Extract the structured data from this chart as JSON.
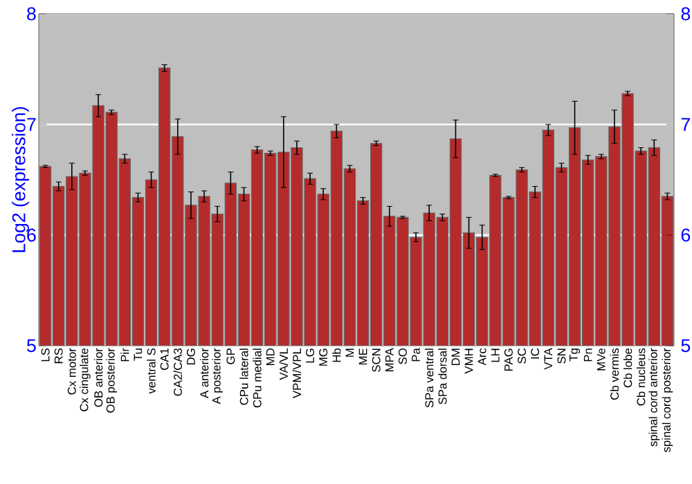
{
  "chart_data": {
    "type": "bar",
    "ylabel": "Log2 (expression)",
    "categories": [
      "LS",
      "RS",
      "Cx motor",
      "Cx cingulate",
      "OB anterior",
      "OB posterior",
      "Pir",
      "Tu",
      "ventral S",
      "CA1",
      "CA2/CA3",
      "DG",
      "A anterior",
      "A posterior",
      "GP",
      "CPu lateral",
      "CPu medial",
      "MD",
      "VA/VL",
      "VPM/VPL",
      "LG",
      "MG",
      "Hb",
      "M",
      "ME",
      "SCN",
      "MPA",
      "SO",
      "Pa",
      "SPa ventral",
      "SPa dorsal",
      "DM",
      "VMH",
      "Arc",
      "LH",
      "PAG",
      "SC",
      "IC",
      "VTA",
      "SN",
      "Tg",
      "Pn",
      "MVe",
      "Cb vermis",
      "Cb lobe",
      "Cb nucleus",
      "spinal cord anterior",
      "spinal cord posterior"
    ],
    "values": [
      6.62,
      6.44,
      6.53,
      6.56,
      7.17,
      7.11,
      6.69,
      6.34,
      6.5,
      7.51,
      6.89,
      6.27,
      6.35,
      6.19,
      6.47,
      6.37,
      6.77,
      6.74,
      6.75,
      6.79,
      6.51,
      6.37,
      6.94,
      6.6,
      6.31,
      6.83,
      6.17,
      6.16,
      5.98,
      6.2,
      6.16,
      6.87,
      6.02,
      5.98,
      6.54,
      6.34,
      6.59,
      6.39,
      6.95,
      6.61,
      6.97,
      6.68,
      6.71,
      6.98,
      7.28,
      6.76,
      6.79,
      6.35
    ],
    "errors": [
      0.01,
      0.04,
      0.12,
      0.02,
      0.1,
      0.02,
      0.04,
      0.04,
      0.07,
      0.03,
      0.16,
      0.12,
      0.05,
      0.07,
      0.1,
      0.06,
      0.03,
      0.02,
      0.32,
      0.06,
      0.05,
      0.05,
      0.06,
      0.03,
      0.03,
      0.02,
      0.09,
      0.01,
      0.04,
      0.07,
      0.03,
      0.17,
      0.14,
      0.11,
      0.01,
      0.01,
      0.02,
      0.05,
      0.05,
      0.04,
      0.24,
      0.04,
      0.02,
      0.15,
      0.02,
      0.03,
      0.07,
      0.03
    ],
    "color": "#b52b2b",
    "ylim": [
      5,
      8
    ],
    "yticks": [
      5,
      6,
      7,
      8
    ],
    "y2lim": [
      5,
      8
    ],
    "y2ticks": [
      5,
      6,
      7,
      8
    ],
    "grid": "y"
  }
}
